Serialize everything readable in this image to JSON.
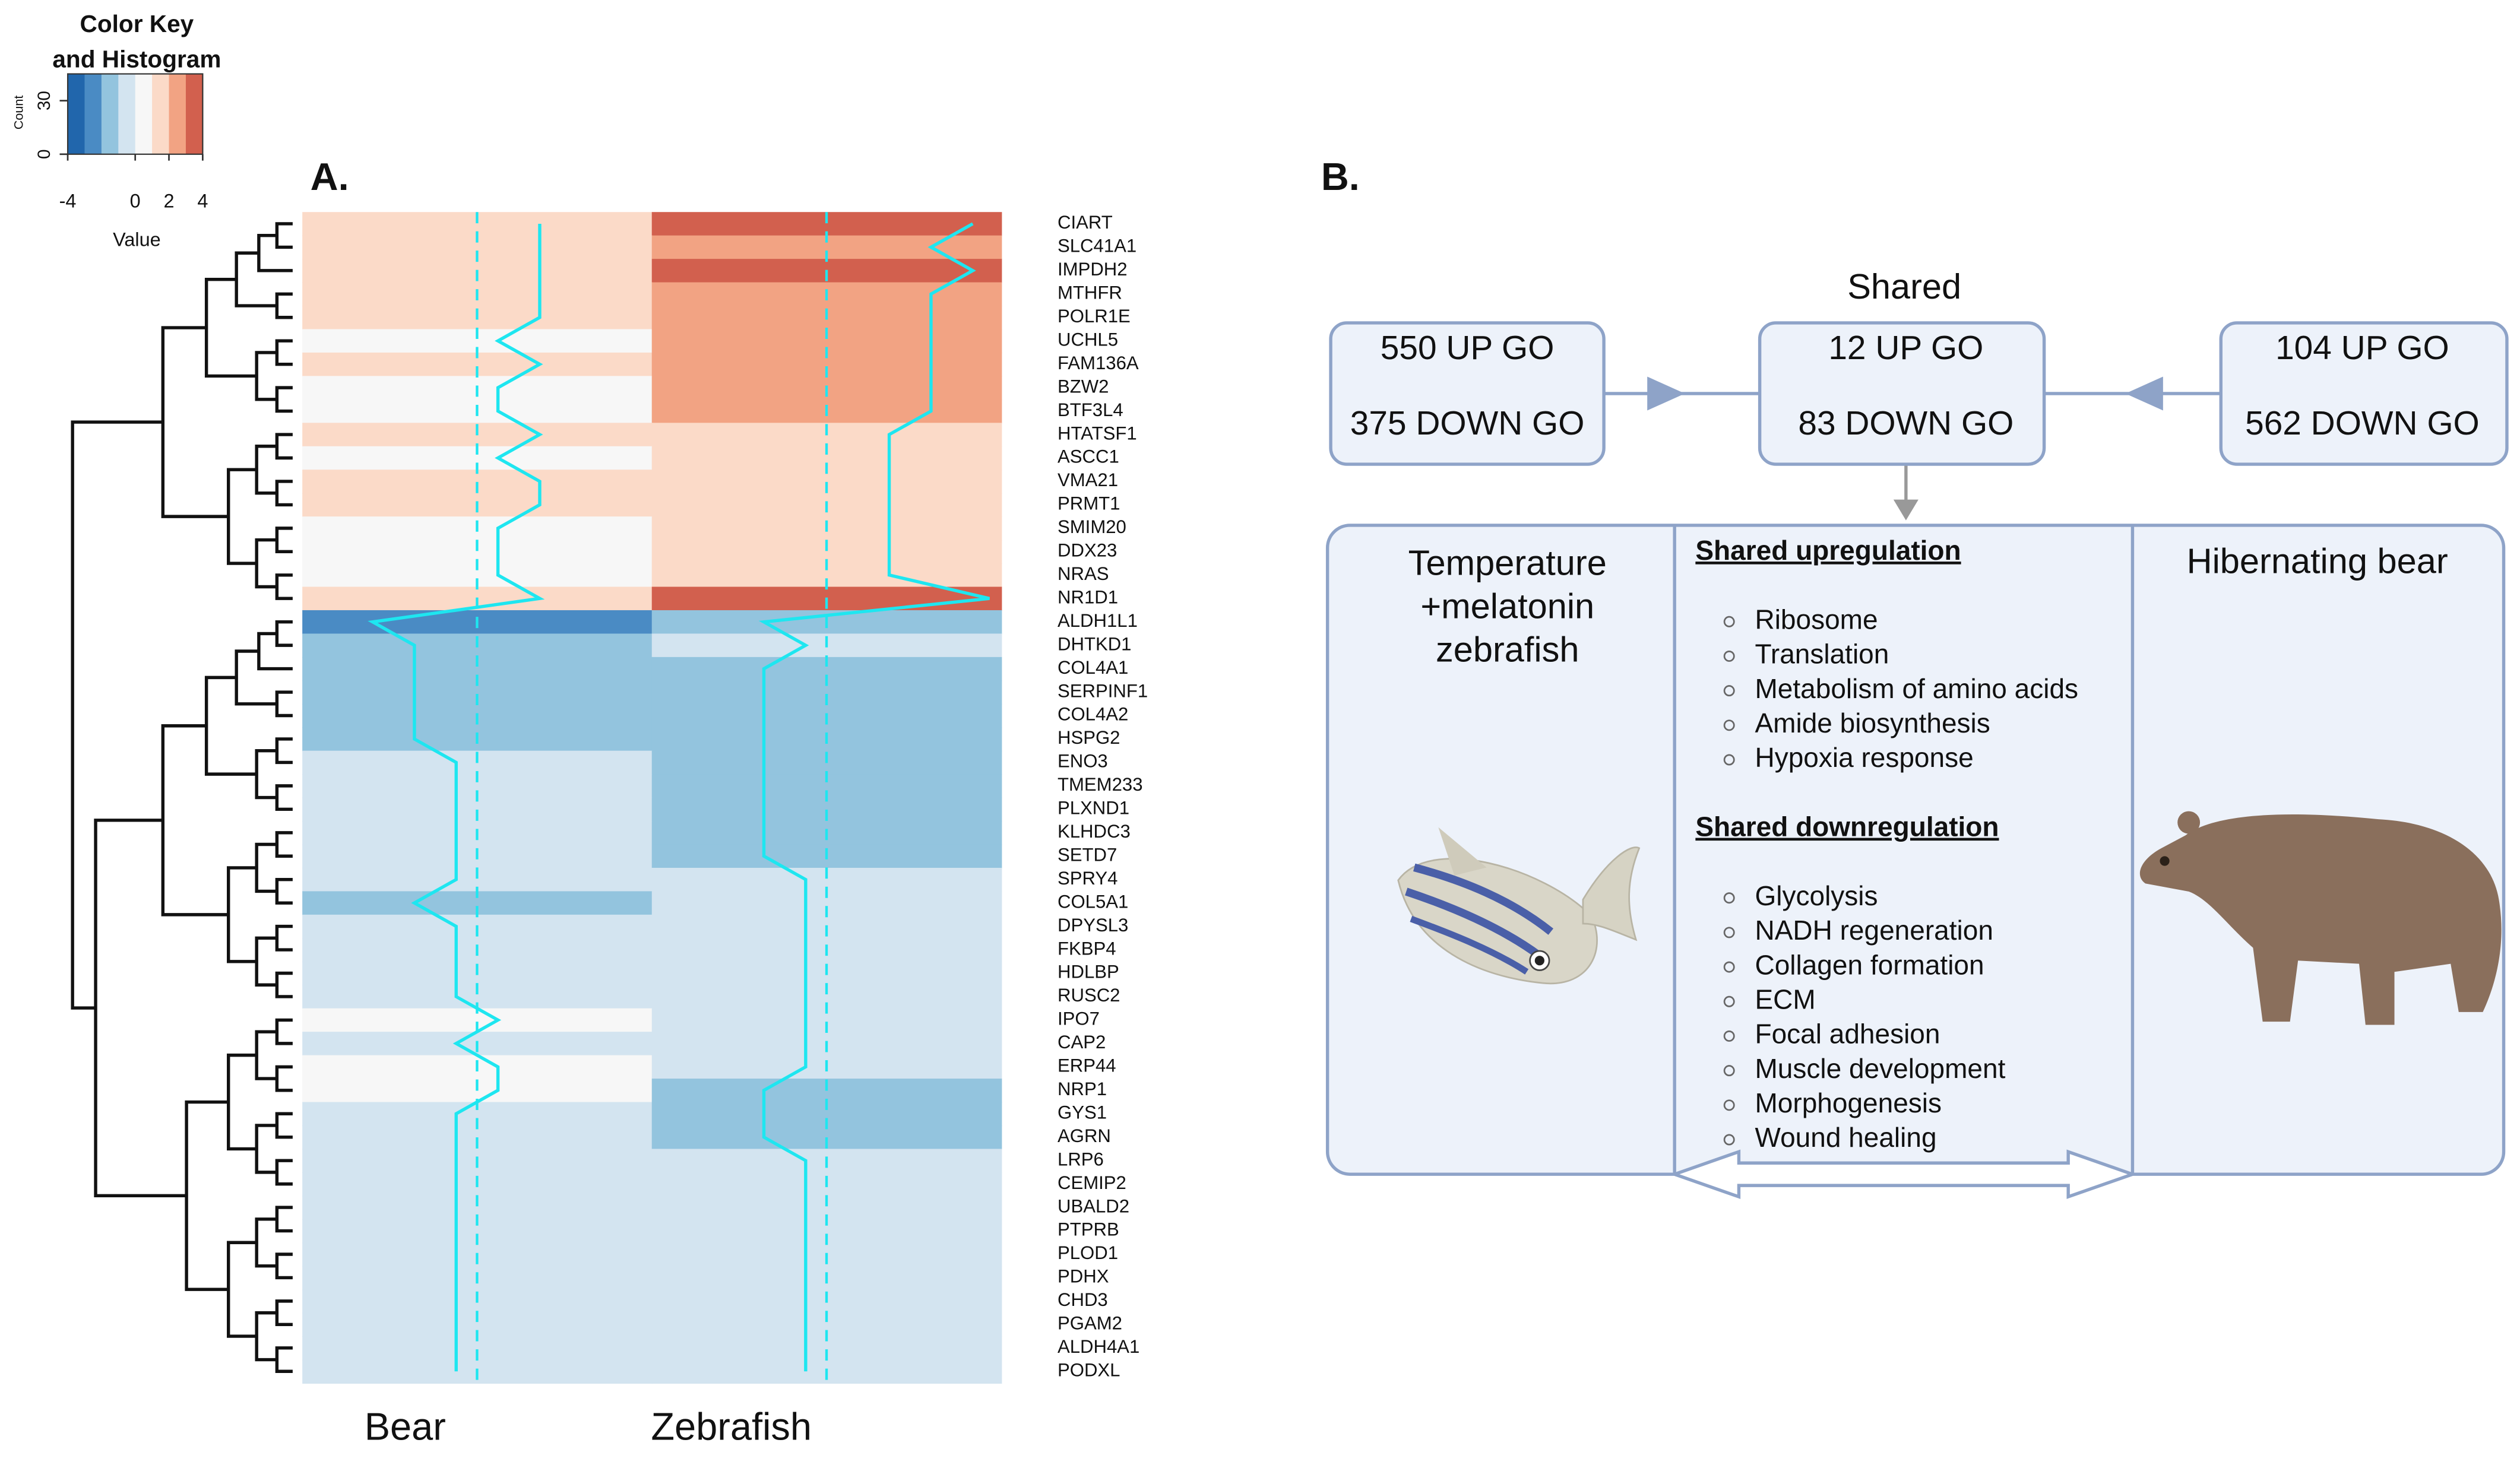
{
  "chart_data": {
    "type": "heatmap",
    "panel_label": "A.",
    "columns": [
      "Bear",
      "Zebrafish"
    ],
    "rows": [
      "CIART",
      "SLC41A1",
      "IMPDH2",
      "MTHFR",
      "POLR1E",
      "UCHL5",
      "FAM136A",
      "BZW2",
      "BTF3L4",
      "HTATSF1",
      "ASCC1",
      "VMA21",
      "PRMT1",
      "SMIM20",
      "DDX23",
      "NRAS",
      "NR1D1",
      "ALDH1L1",
      "DHTKD1",
      "COL4A1",
      "SERPINF1",
      "COL4A2",
      "HSPG2",
      "ENO3",
      "TMEM233",
      "PLXND1",
      "KLHDC3",
      "SETD7",
      "SPRY4",
      "COL5A1",
      "DPYSL3",
      "FKBP4",
      "HDLBP",
      "RUSC2",
      "IPO7",
      "CAP2",
      "ERP44",
      "NRP1",
      "GYS1",
      "AGRN",
      "LRP6",
      "CEMIP2",
      "UBALD2",
      "PTPRB",
      "PLOD1",
      "PDHX",
      "CHD3",
      "PGAM2",
      "ALDH4A1",
      "PODXL"
    ],
    "values": [
      [
        1.5,
        3.5
      ],
      [
        1.5,
        2.5
      ],
      [
        1.5,
        3.5
      ],
      [
        1.5,
        2.5
      ],
      [
        1.5,
        2.5
      ],
      [
        0.5,
        2.5
      ],
      [
        1.5,
        2.5
      ],
      [
        0.5,
        2.5
      ],
      [
        0.5,
        2.5
      ],
      [
        1.5,
        1.5
      ],
      [
        0.5,
        1.5
      ],
      [
        1.5,
        1.5
      ],
      [
        1.5,
        1.5
      ],
      [
        0.5,
        1.5
      ],
      [
        0.5,
        1.5
      ],
      [
        0.5,
        1.5
      ],
      [
        1.5,
        3.9
      ],
      [
        -2.5,
        -1.5
      ],
      [
        -1.5,
        -0.5
      ],
      [
        -1.5,
        -1.5
      ],
      [
        -1.5,
        -1.5
      ],
      [
        -1.5,
        -1.5
      ],
      [
        -1.5,
        -1.5
      ],
      [
        -0.5,
        -1.5
      ],
      [
        -0.5,
        -1.5
      ],
      [
        -0.5,
        -1.5
      ],
      [
        -0.5,
        -1.5
      ],
      [
        -0.5,
        -1.5
      ],
      [
        -0.5,
        -0.5
      ],
      [
        -1.5,
        -0.5
      ],
      [
        -0.5,
        -0.5
      ],
      [
        -0.5,
        -0.5
      ],
      [
        -0.5,
        -0.5
      ],
      [
        -0.5,
        -0.5
      ],
      [
        0.5,
        -0.5
      ],
      [
        -0.5,
        -0.5
      ],
      [
        0.5,
        -0.5
      ],
      [
        0.5,
        -1.5
      ],
      [
        -0.5,
        -1.5
      ],
      [
        -0.5,
        -1.5
      ],
      [
        -0.5,
        -0.5
      ],
      [
        -0.5,
        -0.5
      ],
      [
        -0.5,
        -0.5
      ],
      [
        -0.5,
        -0.5
      ],
      [
        -0.5,
        -0.5
      ],
      [
        -0.5,
        -0.5
      ],
      [
        -0.5,
        -0.5
      ],
      [
        -0.5,
        -0.5
      ],
      [
        -0.5,
        -0.5
      ],
      [
        -0.5,
        -0.5
      ]
    ],
    "clim": [
      -4,
      4
    ],
    "colors": [
      "#2166ac",
      "#4a8bc4",
      "#93c4de",
      "#d3e4f0",
      "#f7f7f7",
      "#fbdac8",
      "#f2a383",
      "#d2604e"
    ],
    "trace_color": "#1ee6f0",
    "color_key": {
      "title": [
        "Color Key",
        "and Histogram"
      ],
      "xlabel": "Value",
      "ylabel": "Count",
      "xlim": [
        -4,
        4
      ],
      "xticks": [
        -4,
        0,
        2,
        4
      ],
      "ylim": [
        0,
        45
      ],
      "yticks": [
        0,
        30
      ]
    }
  },
  "panel_b": {
    "label": "B.",
    "shared_title": "Shared",
    "boxes": [
      {
        "up": "550 UP GO",
        "down": "375 DOWN GO"
      },
      {
        "up": "12 UP GO",
        "down": "83 DOWN GO"
      },
      {
        "up": "104 UP GO",
        "down": "562 DOWN GO"
      }
    ],
    "left_title": [
      "Temperature",
      "+melatonin",
      "zebrafish"
    ],
    "right_title": "Hibernating bear",
    "up_heading": "Shared upregulation",
    "up_items": [
      "Ribosome",
      "Translation",
      "Metabolism of amino acids",
      "Amide biosynthesis",
      "Hypoxia response"
    ],
    "down_heading": "Shared downregulation",
    "down_items": [
      "Glycolysis",
      "NADH regeneration",
      "Collagen formation",
      "ECM",
      "Focal adhesion",
      "Muscle development",
      "Morphogenesis",
      "Wound healing"
    ]
  }
}
